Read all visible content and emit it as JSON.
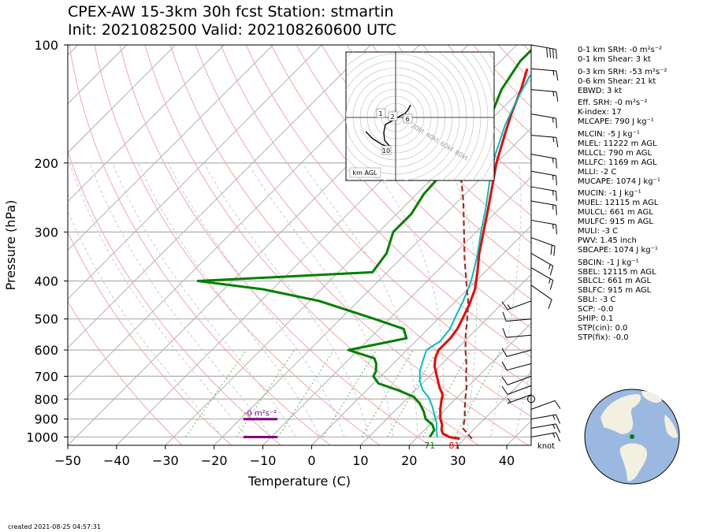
{
  "title": {
    "line1": "CPEX-AW 15-3km  30h fcst  Station: stmartin",
    "line2": "Init: 2021082500  Valid: 202108260600 UTC"
  },
  "created": "created 2021-08-25 04:57:31",
  "indices": [
    {
      "label": "0-1 km SRH: -0 m²s⁻²"
    },
    {
      "label": "0-1 km Shear: 3 kt",
      "gap_after": true
    },
    {
      "label": "0-3 km SRH: -53 m²s⁻²"
    },
    {
      "label": "0-6 km Shear: 21 kt"
    },
    {
      "label": "EBWD: 3 kt",
      "gap_after": true
    },
    {
      "label": "Eff. SRH: -0 m²s⁻²"
    },
    {
      "label": "K-index: 17"
    },
    {
      "label": "MLCAPE: 790 J kg⁻¹",
      "gap_after": true
    },
    {
      "label": "MLCIN: -5 J kg⁻¹"
    },
    {
      "label": "MLEL: 11222 m AGL"
    },
    {
      "label": "MLLCL: 790 m AGL"
    },
    {
      "label": "MLLFC: 1169 m AGL"
    },
    {
      "label": "MLLI: -2 C"
    },
    {
      "label": "MUCAPE: 1074 J kg⁻¹",
      "gap_after": true
    },
    {
      "label": "MUCIN: -1 J kg⁻¹"
    },
    {
      "label": "MUEL: 12115 m AGL"
    },
    {
      "label": "MULCL: 661 m AGL"
    },
    {
      "label": "MULFC: 915 m AGL"
    },
    {
      "label": "MULI: -3 C"
    },
    {
      "label": "PWV: 1.45 inch"
    },
    {
      "label": "SBCAPE: 1074 J kg⁻¹",
      "gap_after": true
    },
    {
      "label": "SBCIN: -1 J kg⁻¹"
    },
    {
      "label": "SBEL: 12115 m AGL"
    },
    {
      "label": "SBLCL: 661 m AGL"
    },
    {
      "label": "SBLFC: 915 m AGL"
    },
    {
      "label": "SBLI: -3 C"
    },
    {
      "label": "SCP: -0.0"
    },
    {
      "label": "SHIP: 0.1"
    },
    {
      "label": "STP(cin): 0.0"
    },
    {
      "label": "STP(fix): -0.0"
    }
  ],
  "chart_data": {
    "type": "line",
    "subtype": "skew-t log-p",
    "xlabel": "Temperature (C)",
    "ylabel": "Pressure (hPa)",
    "xlim": [
      -50,
      45
    ],
    "ylim": [
      1050,
      100
    ],
    "x_ticks": [
      -50,
      -40,
      -30,
      -20,
      -10,
      0,
      10,
      20,
      30,
      40
    ],
    "y_ticks": [
      100,
      200,
      300,
      400,
      500,
      600,
      700,
      800,
      900,
      1000
    ],
    "y_scale": "log",
    "grid": true,
    "colors": {
      "temperature": "#ee0000",
      "dewpoint": "#008000",
      "wetbulb": "#00bfbf",
      "parcel": "#a52a2a",
      "shear_bar": "#800080",
      "isotherm": "#b0b0b0",
      "dry_adiabat": "#f4a6a6",
      "moist_adiabat": "#cccccc",
      "mixing_ratio": "#5cb85c"
    },
    "series": [
      {
        "key": "temperature",
        "points": [
          [
            1010,
            29
          ],
          [
            1000,
            26.5
          ],
          [
            980,
            24.5
          ],
          [
            960,
            23.5
          ],
          [
            930,
            22.5
          ],
          [
            900,
            21
          ],
          [
            850,
            19
          ],
          [
            810,
            17.5
          ],
          [
            780,
            16.5
          ],
          [
            750,
            14.5
          ],
          [
            700,
            11.5
          ],
          [
            660,
            9
          ],
          [
            630,
            7.5
          ],
          [
            600,
            6.5
          ],
          [
            560,
            6.5
          ],
          [
            530,
            6
          ],
          [
            500,
            5
          ],
          [
            460,
            3.5
          ],
          [
            420,
            1.5
          ],
          [
            380,
            -1.5
          ],
          [
            340,
            -5
          ],
          [
            300,
            -8.5
          ],
          [
            260,
            -12.5
          ],
          [
            230,
            -16
          ],
          [
            200,
            -20
          ],
          [
            170,
            -24
          ],
          [
            150,
            -27
          ],
          [
            130,
            -30
          ],
          [
            115,
            -33
          ]
        ]
      },
      {
        "key": "dewpoint",
        "points": [
          [
            1000,
            22.5
          ],
          [
            960,
            22
          ],
          [
            930,
            20.5
          ],
          [
            900,
            18
          ],
          [
            860,
            16
          ],
          [
            820,
            13.5
          ],
          [
            790,
            11
          ],
          [
            760,
            6.5
          ],
          [
            730,
            1
          ],
          [
            700,
            -1.5
          ],
          [
            680,
            -2
          ],
          [
            650,
            -3.5
          ],
          [
            630,
            -5
          ],
          [
            600,
            -12
          ],
          [
            560,
            -2.5
          ],
          [
            530,
            -5
          ],
          [
            500,
            -13
          ],
          [
            450,
            -28
          ],
          [
            420,
            -42
          ],
          [
            400,
            -57
          ],
          [
            380,
            -23
          ],
          [
            340,
            -24
          ],
          [
            300,
            -27
          ],
          [
            270,
            -27
          ],
          [
            240,
            -28.5
          ],
          [
            210,
            -29
          ],
          [
            180,
            -30
          ],
          [
            150,
            -31
          ],
          [
            130,
            -34
          ],
          [
            110,
            -36
          ],
          [
            100,
            -36
          ]
        ]
      },
      {
        "key": "wetbulb",
        "points": [
          [
            1000,
            24
          ],
          [
            960,
            22.5
          ],
          [
            920,
            21
          ],
          [
            880,
            19
          ],
          [
            840,
            17
          ],
          [
            790,
            14
          ],
          [
            760,
            11.5
          ],
          [
            720,
            9
          ],
          [
            680,
            7
          ],
          [
            640,
            5.5
          ],
          [
            600,
            4
          ],
          [
            570,
            5
          ],
          [
            530,
            4.5
          ],
          [
            490,
            3
          ],
          [
            450,
            1.5
          ],
          [
            400,
            -1
          ],
          [
            350,
            -4.5
          ],
          [
            300,
            -9
          ],
          [
            260,
            -13
          ],
          [
            220,
            -18
          ],
          [
            190,
            -22
          ],
          [
            160,
            -26
          ],
          [
            140,
            -28.5
          ],
          [
            120,
            -31
          ],
          [
            110,
            -29
          ],
          [
            100,
            -28
          ]
        ]
      },
      {
        "key": "parcel",
        "points": [
          [
            1010,
            31.5
          ],
          [
            950,
            27.5
          ],
          [
            900,
            26
          ],
          [
            850,
            24
          ],
          [
            800,
            22
          ],
          [
            750,
            20
          ],
          [
            700,
            17.5
          ],
          [
            650,
            15
          ],
          [
            600,
            12
          ],
          [
            550,
            9
          ],
          [
            500,
            6
          ],
          [
            450,
            2.5
          ],
          [
            400,
            -2
          ],
          [
            350,
            -7
          ],
          [
            300,
            -12.5
          ],
          [
            250,
            -19
          ],
          [
            200,
            -27.5
          ],
          [
            150,
            -39
          ],
          [
            110,
            -52
          ]
        ]
      }
    ],
    "surface_labels": {
      "dewpoint": "71",
      "temperature": "81"
    },
    "shear_markers": [
      {
        "label": "-0 m²s⁻²",
        "pressure": 900,
        "temp_range": [
          -14,
          -7
        ]
      },
      {
        "pressure": 1000,
        "temp_range": [
          -14,
          -7
        ]
      }
    ],
    "wind_unit": "knot",
    "hodograph": {
      "ring_labels": [
        "20kt",
        "40kt",
        "60kt",
        "80kt"
      ],
      "height_labels": [
        "1",
        "2",
        "6",
        "10"
      ],
      "legend": "km AGL",
      "trace": [
        [
          0.5,
          -5
        ],
        [
          0,
          -4
        ],
        [
          -0.5,
          -3
        ],
        [
          -1.5,
          -1
        ],
        [
          -2,
          1
        ],
        [
          -1.8,
          3
        ],
        [
          -1.2,
          5
        ],
        [
          0.5,
          6.5
        ],
        [
          2,
          7.5
        ],
        [
          3,
          8.5
        ],
        [
          4,
          10
        ],
        [
          4.5,
          11
        ],
        [
          5.5,
          12.5
        ],
        [
          6.5,
          13.5
        ],
        [
          7,
          14
        ],
        [
          8,
          15
        ],
        [
          9,
          17
        ],
        [
          10,
          19
        ],
        [
          11,
          20
        ]
      ]
    },
    "barbs": [
      {
        "p": 100,
        "speed": 40,
        "dir": 100
      },
      {
        "p": 115,
        "speed": 15,
        "dir": 95
      },
      {
        "p": 130,
        "speed": 15,
        "dir": 95
      },
      {
        "p": 150,
        "speed": 15,
        "dir": 100
      },
      {
        "p": 170,
        "speed": 15,
        "dir": 95
      },
      {
        "p": 190,
        "speed": 15,
        "dir": 100
      },
      {
        "p": 210,
        "speed": 15,
        "dir": 100
      },
      {
        "p": 230,
        "speed": 15,
        "dir": 100
      },
      {
        "p": 250,
        "speed": 15,
        "dir": 100
      },
      {
        "p": 280,
        "speed": 15,
        "dir": 100
      },
      {
        "p": 310,
        "speed": 20,
        "dir": 110
      },
      {
        "p": 340,
        "speed": 15,
        "dir": 120
      },
      {
        "p": 370,
        "speed": 15,
        "dir": 120
      },
      {
        "p": 410,
        "speed": 10,
        "dir": 125
      },
      {
        "p": 450,
        "speed": 15,
        "dir": 250
      },
      {
        "p": 500,
        "speed": 10,
        "dir": 265
      },
      {
        "p": 550,
        "speed": 10,
        "dir": 265
      },
      {
        "p": 600,
        "speed": 10,
        "dir": 255
      },
      {
        "p": 650,
        "speed": 10,
        "dir": 255
      },
      {
        "p": 700,
        "speed": 10,
        "dir": 250
      },
      {
        "p": 740,
        "speed": 10,
        "dir": 250
      },
      {
        "p": 780,
        "speed": 5,
        "dir": 250
      },
      {
        "p": 850,
        "speed": 10,
        "dir": 70
      },
      {
        "p": 900,
        "speed": 15,
        "dir": 80
      },
      {
        "p": 950,
        "speed": 15,
        "dir": 80
      },
      {
        "p": 1000,
        "speed": 15,
        "dir": 80
      }
    ],
    "calm_marker_pressure": 800
  }
}
